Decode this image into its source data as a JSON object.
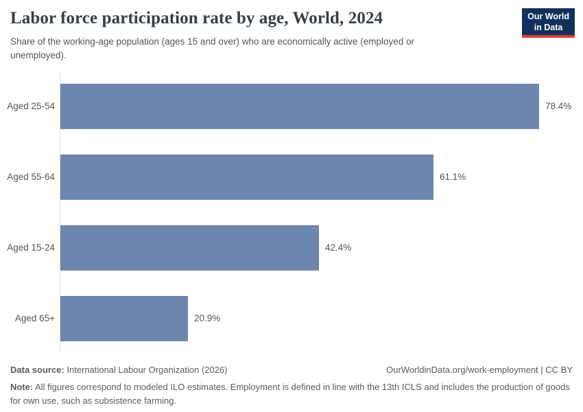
{
  "header": {
    "title": "Labor force participation rate by age, World, 2024",
    "subtitle": "Share of the working-age population (ages 15 and over) who are economically active (employed or unemployed).",
    "logo_line1": "Our World",
    "logo_line2": "in Data"
  },
  "chart_data": {
    "type": "bar",
    "orientation": "horizontal",
    "title": "Labor force participation rate by age, World, 2024",
    "categories": [
      "Aged 25-54",
      "Aged 55-64",
      "Aged 15-24",
      "Aged 65+"
    ],
    "values": [
      78.4,
      61.1,
      42.4,
      20.9
    ],
    "value_labels": [
      "78.4%",
      "61.1%",
      "42.4%",
      "20.9%"
    ],
    "unit": "%",
    "xlim": [
      0,
      78.4
    ],
    "grid": false,
    "legend": "none",
    "bar_color": "#6d86ae",
    "axis_color": "#dcdcdc",
    "label_color": "#555555"
  },
  "footer": {
    "data_source_label": "Data source:",
    "data_source": " International Labour Organization (2026)",
    "link": "OurWorldinData.org/work-employment | CC BY",
    "note_label": "Note:",
    "note": " All figures correspond to modeled ILO estimates. Employment is defined in line with the 13th ICLS and includes the production of goods for own use, such as subsistence farming."
  }
}
